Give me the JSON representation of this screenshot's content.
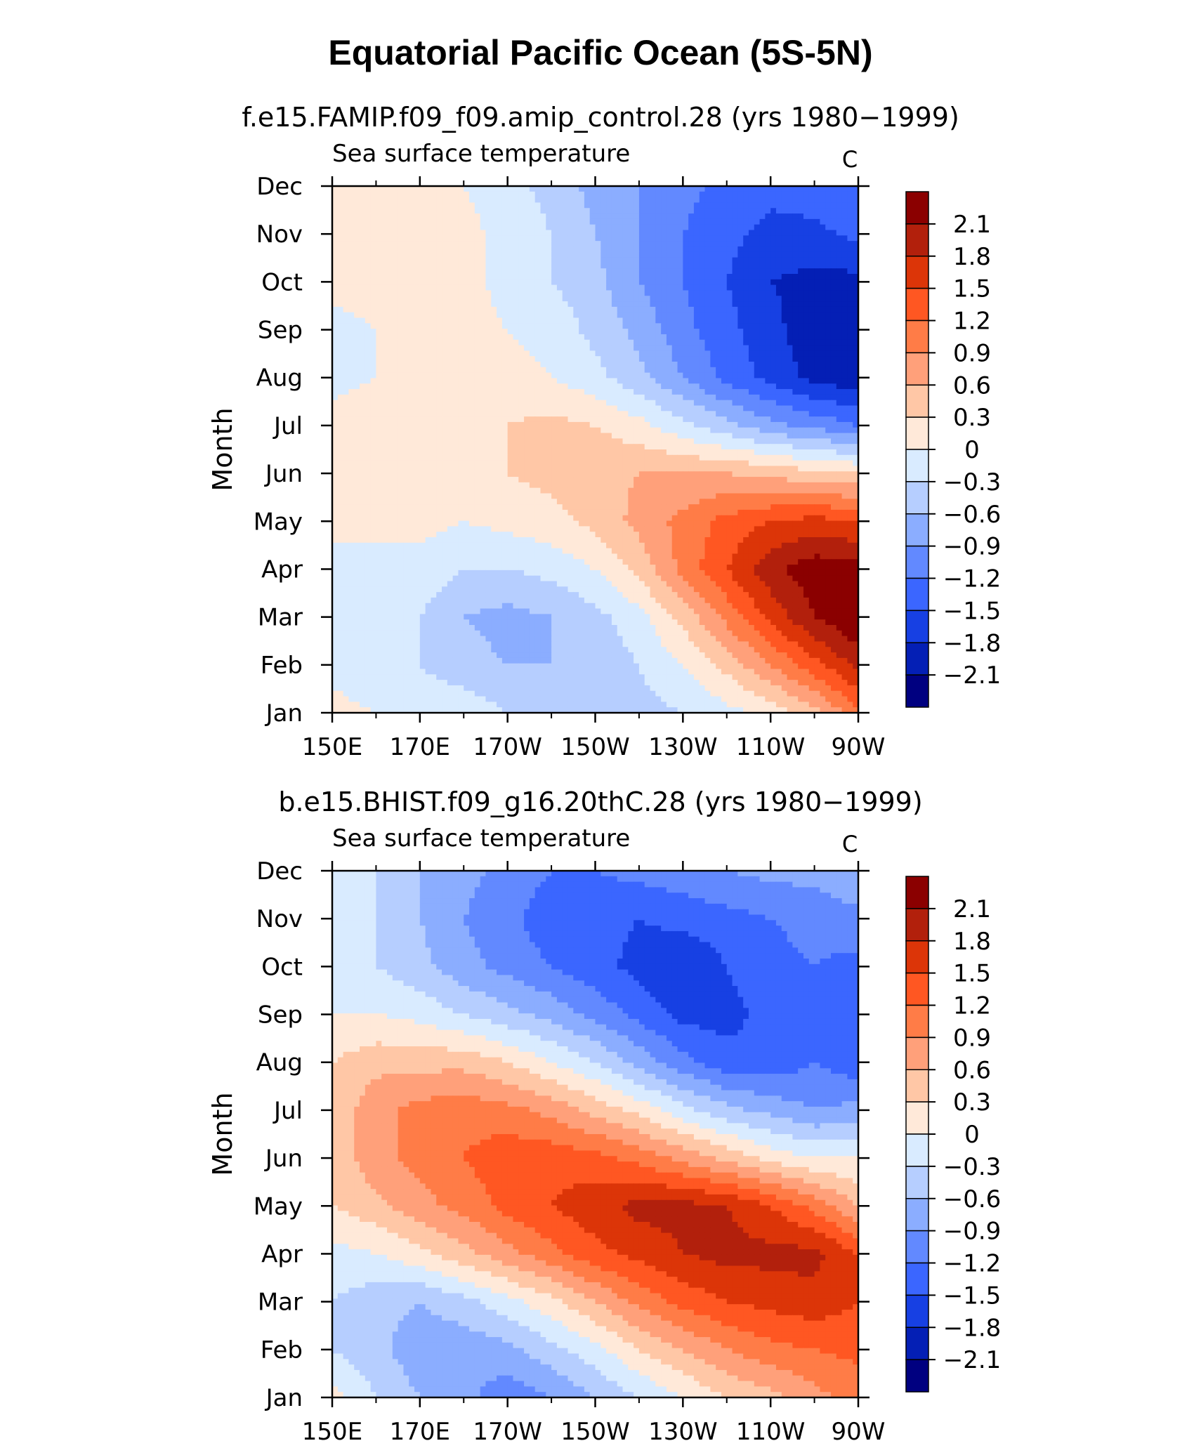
{
  "figure_title": "Equatorial Pacific Ocean (5S-5N)",
  "colorbar": {
    "levels": [
      "2.1",
      "1.8",
      "1.5",
      "1.2",
      "0.9",
      "0.6",
      "0.3",
      "0",
      "-0.3",
      "-0.6",
      "-0.9",
      "-1.2",
      "-1.5",
      "-1.8",
      "-2.1"
    ],
    "colors": [
      "#8b0000",
      "#b2200c",
      "#dc3508",
      "#ff5722",
      "#ff7c47",
      "#ffa07a",
      "#ffc7a6",
      "#ffe9d9",
      "#d9ebff",
      "#b6ceff",
      "#8badff",
      "#6289ff",
      "#3b66ff",
      "#1740e3",
      "#041fb5",
      "#000080"
    ]
  },
  "chart_data": [
    {
      "type": "heatmap",
      "panel_title": "f.e15.FAMIP.f09_f09.amip_control.28 (yrs 1980−1999)",
      "left_label": "Sea surface temperature",
      "units": "C",
      "ylabel": "Month",
      "xlabel": "",
      "x_ticks": [
        "150E",
        "170E",
        "170W",
        "150W",
        "130W",
        "110W",
        "90W"
      ],
      "x_values": [
        150,
        170,
        190,
        210,
        230,
        250,
        270
      ],
      "y_ticks": [
        "Jan",
        "Feb",
        "Mar",
        "Apr",
        "May",
        "Jun",
        "Jul",
        "Aug",
        "Sep",
        "Oct",
        "Nov",
        "Dec"
      ],
      "grid_values_C": [
        [
          0.1,
          0.0,
          -0.1,
          -0.1,
          -0.3,
          -0.4,
          -0.5,
          -0.4,
          -0.3,
          -0.1,
          0.1,
          0.5,
          1.1
        ],
        [
          -0.1,
          -0.2,
          -0.3,
          -0.5,
          -0.6,
          -0.6,
          -0.5,
          -0.3,
          0.0,
          0.4,
          0.9,
          1.4,
          1.9
        ],
        [
          -0.2,
          -0.2,
          -0.3,
          -0.6,
          -0.7,
          -0.6,
          -0.4,
          -0.1,
          0.4,
          1.0,
          1.6,
          2.1,
          2.4
        ],
        [
          -0.1,
          -0.1,
          -0.1,
          -0.3,
          -0.3,
          -0.2,
          0.0,
          0.4,
          1.0,
          1.5,
          2.0,
          2.3,
          2.2
        ],
        [
          0.1,
          0.1,
          0.1,
          0.0,
          0.1,
          0.2,
          0.4,
          0.7,
          1.0,
          1.3,
          1.5,
          1.6,
          1.5
        ],
        [
          0.2,
          0.2,
          0.2,
          0.2,
          0.3,
          0.4,
          0.5,
          0.6,
          0.6,
          0.6,
          0.5,
          0.4,
          0.3
        ],
        [
          0.1,
          0.2,
          0.2,
          0.2,
          0.3,
          0.4,
          0.3,
          0.1,
          -0.2,
          -0.5,
          -0.8,
          -1.0,
          -1.2
        ],
        [
          -0.1,
          0.0,
          0.1,
          0.2,
          0.1,
          0.0,
          -0.2,
          -0.5,
          -0.9,
          -1.3,
          -1.6,
          -1.9,
          -2.0
        ],
        [
          -0.1,
          0.0,
          0.1,
          0.1,
          0.0,
          -0.1,
          -0.4,
          -0.7,
          -1.1,
          -1.4,
          -1.7,
          -2.0,
          -2.1
        ],
        [
          0.1,
          0.1,
          0.1,
          0.1,
          -0.1,
          -0.3,
          -0.5,
          -0.9,
          -1.2,
          -1.5,
          -1.8,
          -1.9,
          -1.9
        ],
        [
          0.1,
          0.1,
          0.1,
          0.1,
          -0.1,
          -0.3,
          -0.6,
          -0.9,
          -1.2,
          -1.4,
          -1.6,
          -1.6,
          -1.4
        ],
        [
          0.1,
          0.1,
          0.1,
          0.0,
          -0.2,
          -0.4,
          -0.7,
          -0.9,
          -1.1,
          -1.3,
          -1.4,
          -1.3,
          -1.2
        ]
      ]
    },
    {
      "type": "heatmap",
      "panel_title": "b.e15.BHIST.f09_g16.20thC.28 (yrs 1980−1999)",
      "left_label": "Sea surface temperature",
      "units": "C",
      "ylabel": "Month",
      "xlabel": "",
      "x_ticks": [
        "150E",
        "170E",
        "170W",
        "150W",
        "130W",
        "110W",
        "90W"
      ],
      "x_values": [
        150,
        170,
        190,
        210,
        230,
        250,
        270
      ],
      "y_ticks": [
        "Jan",
        "Feb",
        "Mar",
        "Apr",
        "May",
        "Jun",
        "Jul",
        "Aug",
        "Sep",
        "Oct",
        "Nov",
        "Dec"
      ],
      "grid_values_C": [
        [
          0.1,
          -0.3,
          -0.6,
          -0.8,
          -1.1,
          -0.9,
          -0.6,
          -0.3,
          0.0,
          0.3,
          0.5,
          0.8,
          1.0
        ],
        [
          -0.3,
          -0.5,
          -0.8,
          -0.8,
          -0.7,
          -0.4,
          -0.1,
          0.3,
          0.6,
          0.9,
          1.1,
          1.2,
          1.3
        ],
        [
          -0.3,
          -0.5,
          -0.6,
          -0.4,
          -0.1,
          0.2,
          0.6,
          1.0,
          1.3,
          1.5,
          1.6,
          1.7,
          1.5
        ],
        [
          -0.1,
          0.0,
          0.2,
          0.5,
          0.8,
          1.1,
          1.4,
          1.6,
          1.8,
          1.9,
          1.9,
          1.9,
          1.5
        ],
        [
          0.3,
          0.5,
          0.8,
          1.0,
          1.3,
          1.5,
          1.7,
          1.9,
          1.9,
          1.8,
          1.5,
          1.1,
          0.6
        ],
        [
          0.4,
          0.8,
          1.0,
          1.2,
          1.4,
          1.4,
          1.3,
          1.1,
          0.8,
          0.5,
          0.2,
          0.0,
          0.0
        ],
        [
          0.4,
          0.8,
          1.0,
          1.1,
          1.0,
          0.8,
          0.5,
          0.2,
          -0.2,
          -0.5,
          -0.7,
          -0.9,
          -0.8
        ],
        [
          0.3,
          0.5,
          0.5,
          0.5,
          0.3,
          0.0,
          -0.3,
          -0.7,
          -1.1,
          -1.4,
          -1.4,
          -1.2,
          -1.4
        ],
        [
          0.0,
          0.0,
          -0.1,
          -0.3,
          -0.5,
          -0.7,
          -1.0,
          -1.3,
          -1.6,
          -1.6,
          -1.4,
          -1.2,
          -1.5
        ],
        [
          -0.2,
          -0.3,
          -0.5,
          -0.8,
          -1.0,
          -1.2,
          -1.4,
          -1.6,
          -1.8,
          -1.5,
          -1.3,
          -1.2,
          -1.3
        ],
        [
          -0.2,
          -0.3,
          -0.6,
          -0.9,
          -1.1,
          -1.4,
          -1.4,
          -1.5,
          -1.4,
          -1.3,
          -1.2,
          -1.1,
          -1.0
        ],
        [
          -0.1,
          -0.3,
          -0.6,
          -0.8,
          -1.0,
          -1.2,
          -1.2,
          -1.1,
          -1.0,
          -0.9,
          -0.8,
          -0.8,
          -0.6
        ]
      ]
    }
  ]
}
